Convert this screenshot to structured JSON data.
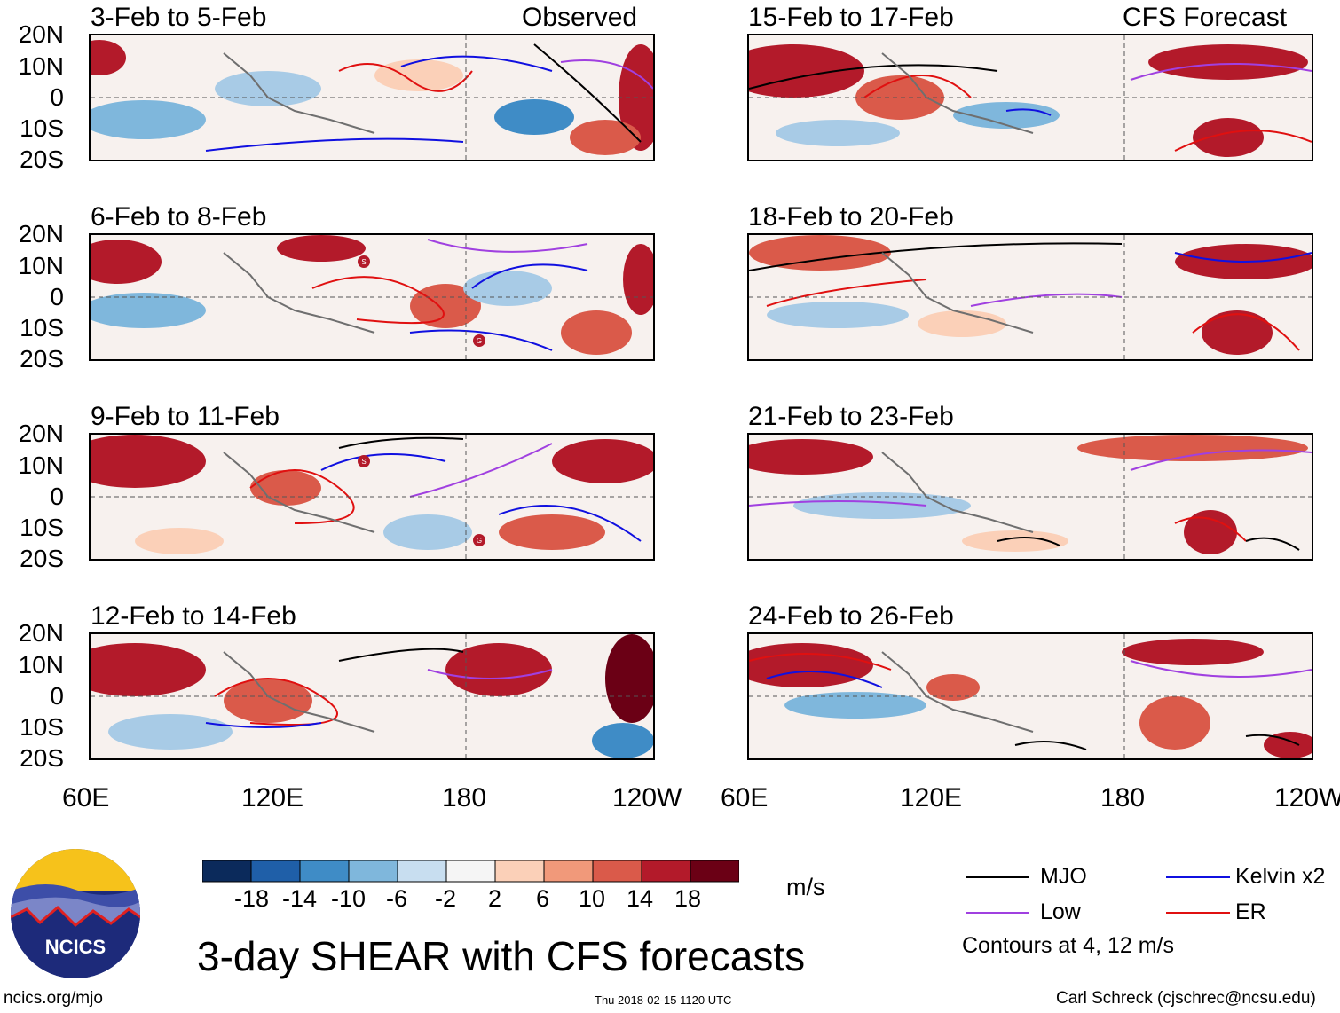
{
  "header": {
    "observed_label": "Observed",
    "forecast_label": "CFS Forecast"
  },
  "panels": {
    "left": [
      {
        "title": "3-Feb to 5-Feb"
      },
      {
        "title": "6-Feb to 8-Feb"
      },
      {
        "title": "9-Feb to 11-Feb"
      },
      {
        "title": "12-Feb to 14-Feb"
      }
    ],
    "right": [
      {
        "title": "15-Feb to 17-Feb"
      },
      {
        "title": "18-Feb to 20-Feb"
      },
      {
        "title": "21-Feb to 23-Feb"
      },
      {
        "title": "24-Feb to 26-Feb"
      }
    ]
  },
  "axes": {
    "lat_labels": [
      "20N",
      "10N",
      "0",
      "10S",
      "20S"
    ],
    "lon_labels": [
      "60E",
      "120E",
      "180",
      "120W"
    ]
  },
  "colorbar": {
    "ticks": [
      "-18",
      "-14",
      "-10",
      "-6",
      "-2",
      "2",
      "6",
      "10",
      "14",
      "18"
    ],
    "colors": [
      "#0b2a5b",
      "#1f5fa8",
      "#3f8cc6",
      "#7fb7dc",
      "#c8def0",
      "#f5f5f5",
      "#fbd0b8",
      "#f1997a",
      "#da5a4a",
      "#b31a2a",
      "#6b0015"
    ],
    "units": "m/s"
  },
  "legend": {
    "items": [
      {
        "label": "MJO",
        "color": "#000000"
      },
      {
        "label": "Kelvin x2",
        "color": "#1010e0"
      },
      {
        "label": "Low",
        "color": "#a040e0"
      },
      {
        "label": "ER",
        "color": "#e01010"
      }
    ],
    "contour_note": "Contours at 4, 12 m/s"
  },
  "footer": {
    "title": "3-day SHEAR with CFS forecasts",
    "logo_text": "NCICS",
    "url": "ncics.org/mjo",
    "timestamp": "Thu 2018-02-15 1120 UTC",
    "credit": "Carl Schreck (cjschrec@ncsu.edu)"
  },
  "storm_markers": [
    "S",
    "G",
    "S",
    "G"
  ]
}
